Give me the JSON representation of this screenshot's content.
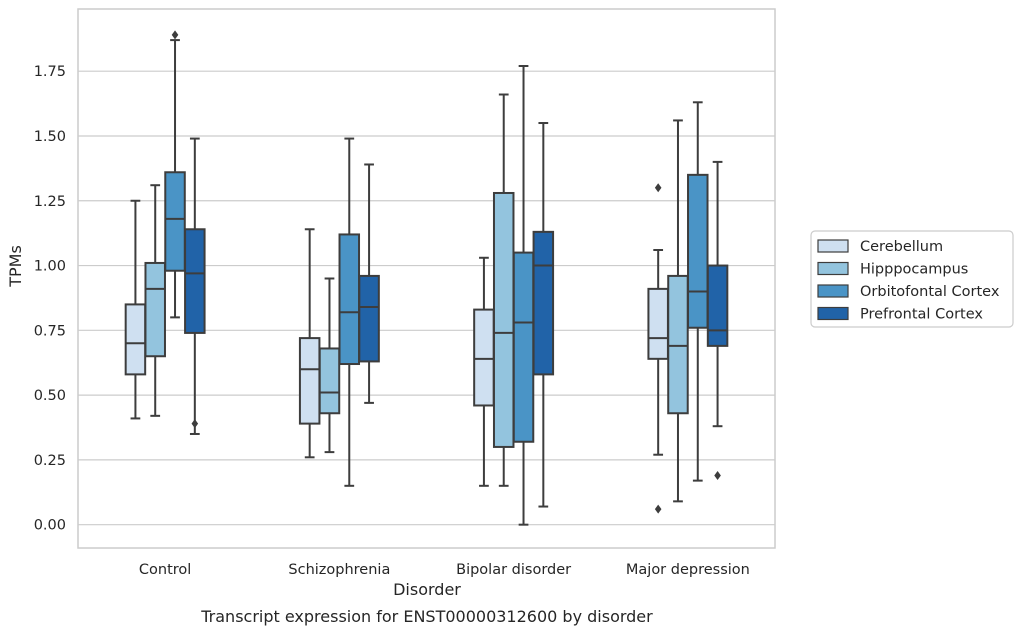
{
  "chart_data": {
    "type": "box",
    "title": "",
    "caption": "Transcript expression for ENST00000312600 by disorder",
    "xlabel": "Disorder",
    "ylabel": "TPMs",
    "ylim": [
      -0.09,
      1.99
    ],
    "yticks": [
      0.0,
      0.25,
      0.5,
      0.75,
      1.0,
      1.25,
      1.5,
      1.75
    ],
    "ytick_labels": [
      "0.00",
      "0.25",
      "0.50",
      "0.75",
      "1.00",
      "1.25",
      "1.50",
      "1.75"
    ],
    "grid": "horizontal",
    "legend_position": "right",
    "categories": [
      "Control",
      "Schizophrenia",
      "Bipolar disorder",
      "Major depression"
    ],
    "series": [
      {
        "name": "Cerebellum",
        "color": "#cfe0f1",
        "boxes": [
          {
            "whislo": 0.41,
            "q1": 0.58,
            "med": 0.7,
            "q3": 0.85,
            "whishi": 1.25,
            "fliers": []
          },
          {
            "whislo": 0.26,
            "q1": 0.39,
            "med": 0.6,
            "q3": 0.72,
            "whishi": 1.14,
            "fliers": []
          },
          {
            "whislo": 0.15,
            "q1": 0.46,
            "med": 0.64,
            "q3": 0.83,
            "whishi": 1.03,
            "fliers": []
          },
          {
            "whislo": 0.27,
            "q1": 0.64,
            "med": 0.72,
            "q3": 0.91,
            "whishi": 1.06,
            "fliers": [
              0.06,
              1.3
            ]
          }
        ]
      },
      {
        "name": "Hipppocampus",
        "color": "#93c4de",
        "boxes": [
          {
            "whislo": 0.42,
            "q1": 0.65,
            "med": 0.91,
            "q3": 1.01,
            "whishi": 1.31,
            "fliers": []
          },
          {
            "whislo": 0.28,
            "q1": 0.43,
            "med": 0.51,
            "q3": 0.68,
            "whishi": 0.95,
            "fliers": []
          },
          {
            "whislo": 0.15,
            "q1": 0.3,
            "med": 0.74,
            "q3": 1.28,
            "whishi": 1.66,
            "fliers": []
          },
          {
            "whislo": 0.09,
            "q1": 0.43,
            "med": 0.69,
            "q3": 0.96,
            "whishi": 1.56,
            "fliers": []
          }
        ]
      },
      {
        "name": "Orbitofontal Cortex",
        "color": "#4a94c6",
        "boxes": [
          {
            "whislo": 0.8,
            "q1": 0.98,
            "med": 1.18,
            "q3": 1.36,
            "whishi": 1.87,
            "fliers": [
              1.89
            ]
          },
          {
            "whislo": 0.15,
            "q1": 0.62,
            "med": 0.82,
            "q3": 1.12,
            "whishi": 1.49,
            "fliers": []
          },
          {
            "whislo": 0.0,
            "q1": 0.32,
            "med": 0.78,
            "q3": 1.05,
            "whishi": 1.77,
            "fliers": []
          },
          {
            "whislo": 0.17,
            "q1": 0.76,
            "med": 0.9,
            "q3": 1.35,
            "whishi": 1.63,
            "fliers": []
          }
        ]
      },
      {
        "name": "Prefrontal Cortex",
        "color": "#2163a8",
        "boxes": [
          {
            "whislo": 0.35,
            "q1": 0.74,
            "med": 0.97,
            "q3": 1.14,
            "whishi": 1.49,
            "fliers": [
              0.39
            ]
          },
          {
            "whislo": 0.47,
            "q1": 0.63,
            "med": 0.84,
            "q3": 0.96,
            "whishi": 1.39,
            "fliers": []
          },
          {
            "whislo": 0.07,
            "q1": 0.58,
            "med": 1.0,
            "q3": 1.13,
            "whishi": 1.55,
            "fliers": []
          },
          {
            "whislo": 0.38,
            "q1": 0.69,
            "med": 0.75,
            "q3": 1.0,
            "whishi": 1.4,
            "fliers": [
              0.19
            ]
          }
        ]
      }
    ]
  }
}
